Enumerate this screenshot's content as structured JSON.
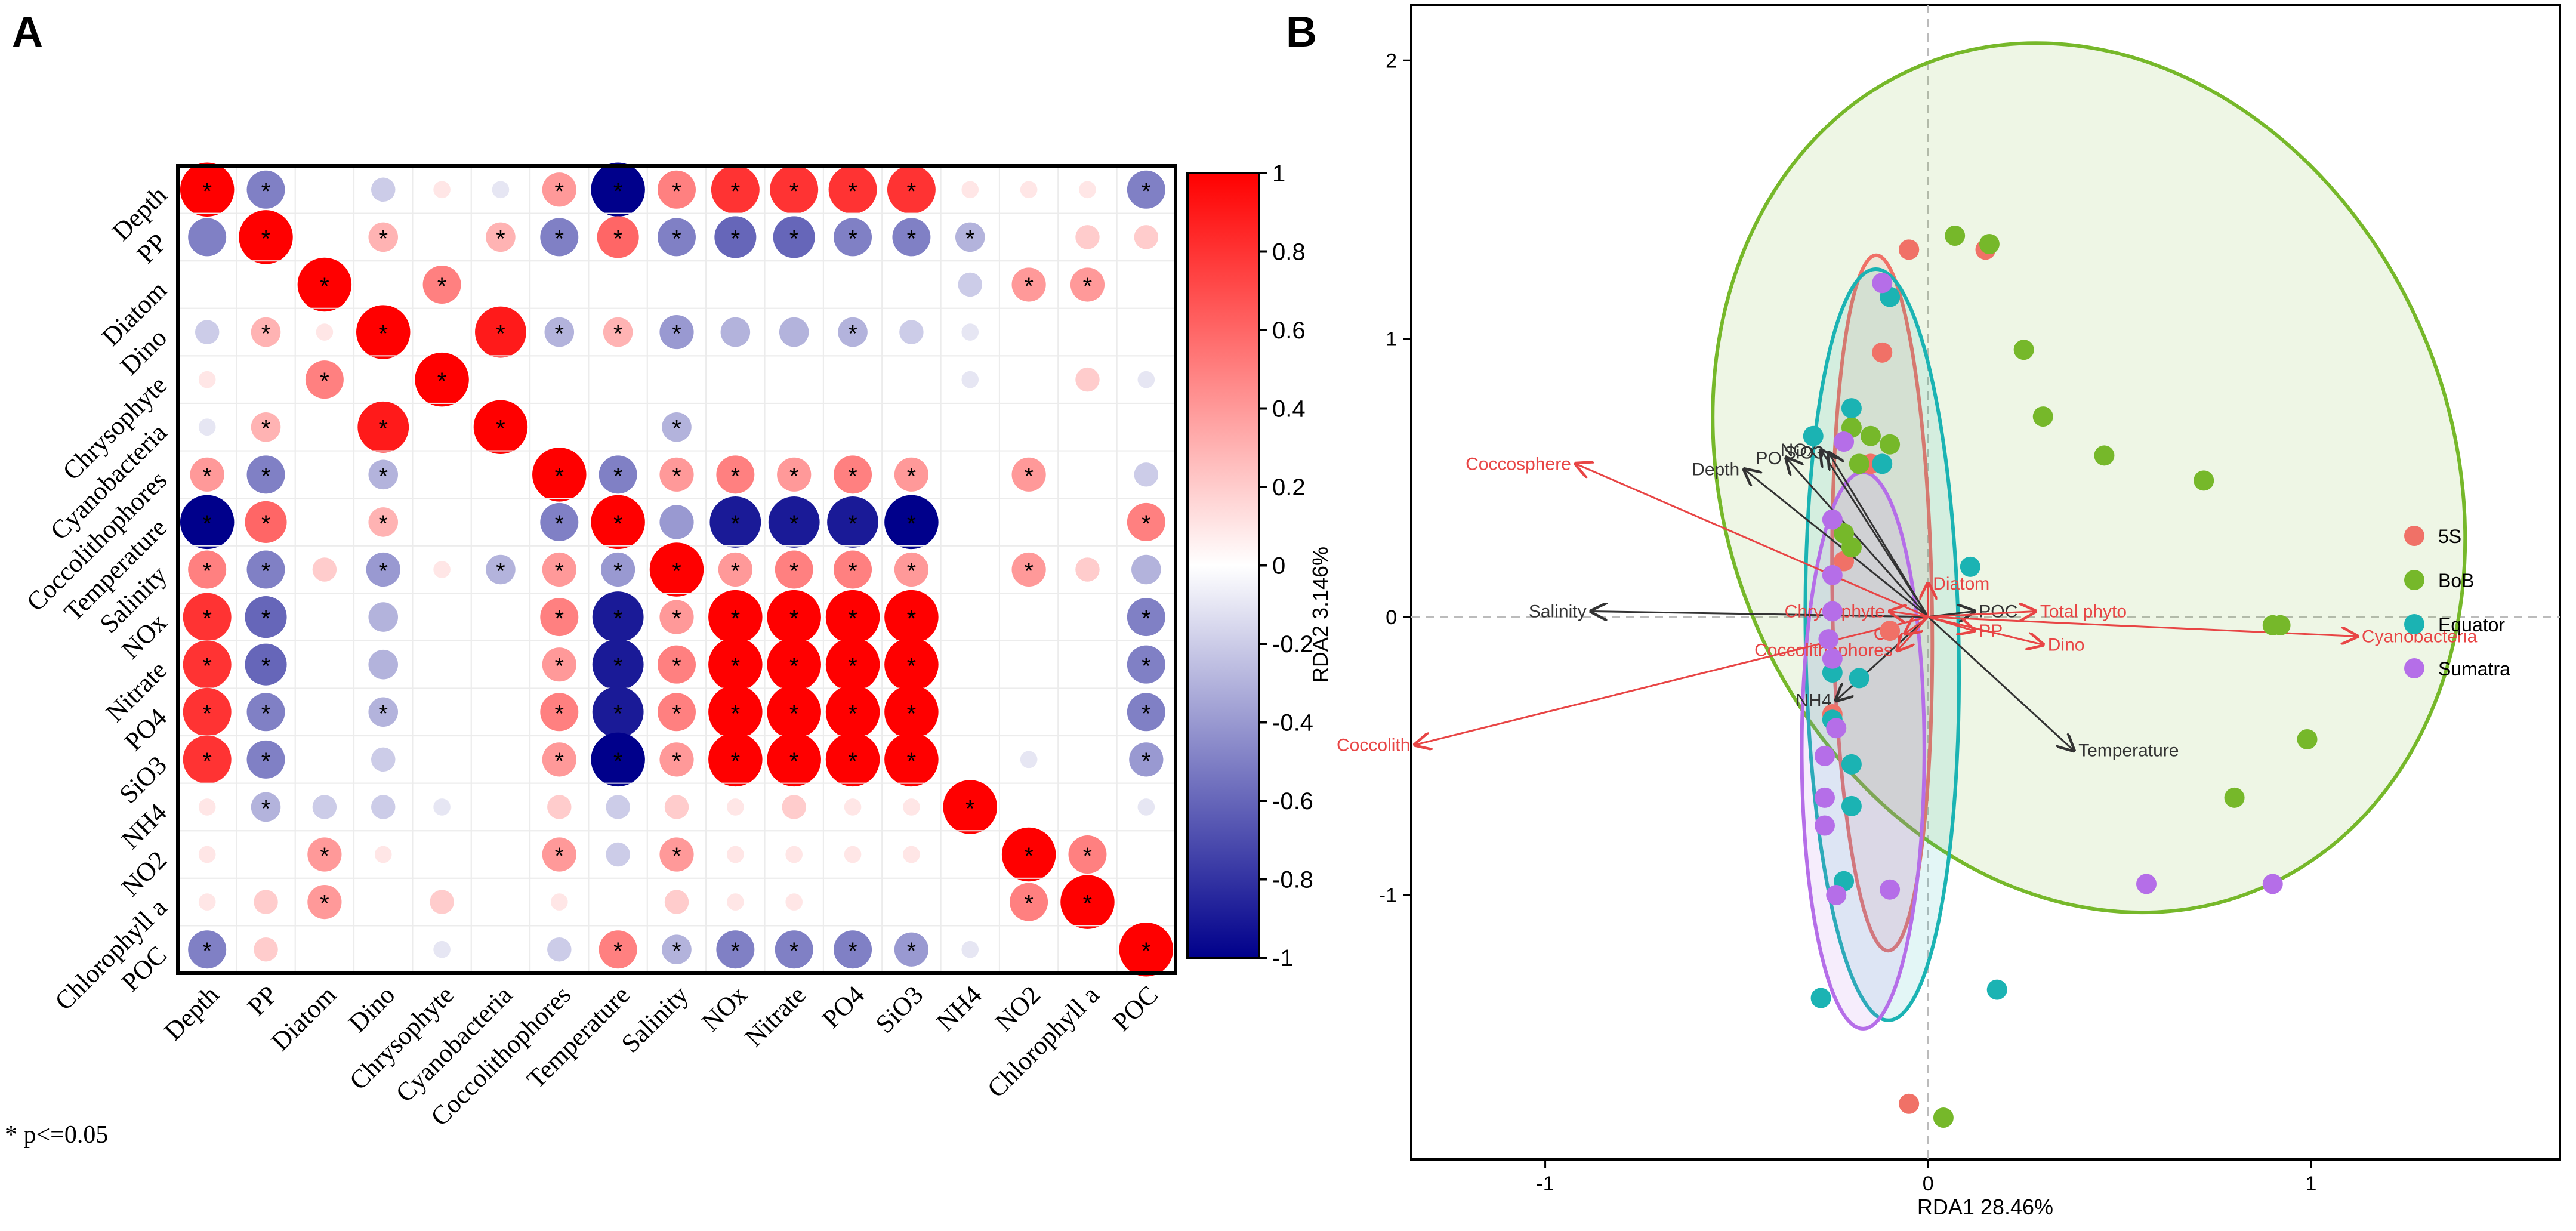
{
  "panel_labels": {
    "a": "A",
    "b": "B"
  },
  "chart_data": [
    {
      "type": "heatmap",
      "title": "",
      "variables": [
        "Depth",
        "PP",
        "Diatom",
        "Dino",
        "Chrysophyte",
        "Cyanobacteria",
        "Coccolithophores",
        "Temperature",
        "Salinity",
        "NOx",
        "Nitrate",
        "PO4",
        "SiO3",
        "NH4",
        "NO2",
        "Chlorophyll a",
        "POC"
      ],
      "matrix": [
        [
          1,
          -0.5,
          0,
          -0.2,
          0.1,
          -0.1,
          0.4,
          -1,
          0.5,
          0.8,
          0.8,
          0.8,
          0.8,
          0.1,
          0.1,
          0.1,
          -0.5
        ],
        [
          -0.5,
          1,
          0,
          0.3,
          0,
          0.3,
          -0.5,
          0.6,
          -0.5,
          -0.6,
          -0.6,
          -0.5,
          -0.5,
          -0.3,
          0,
          0.2,
          0.2
        ],
        [
          0,
          0,
          1,
          0,
          0.5,
          0,
          0,
          0,
          0,
          0,
          0,
          0,
          0,
          -0.2,
          0.4,
          0.4,
          0
        ],
        [
          -0.2,
          0.3,
          0.1,
          1,
          0,
          0.9,
          -0.3,
          0.3,
          -0.4,
          -0.3,
          -0.3,
          -0.3,
          -0.2,
          -0.1,
          0,
          0,
          0
        ],
        [
          0.1,
          0,
          0.5,
          0,
          1,
          0,
          0,
          0,
          0,
          0,
          0,
          0,
          0,
          -0.1,
          0,
          0.2,
          -0.1
        ],
        [
          -0.1,
          0.3,
          0,
          0.9,
          0,
          1,
          0,
          0,
          -0.3,
          0,
          0,
          0,
          0,
          0,
          0,
          0,
          0
        ],
        [
          0.4,
          -0.5,
          0,
          -0.3,
          0,
          0,
          1,
          -0.5,
          0.4,
          0.5,
          0.4,
          0.5,
          0.4,
          0,
          0.4,
          0,
          -0.2
        ],
        [
          -1,
          0.6,
          0,
          0.3,
          0,
          0,
          -0.5,
          1,
          -0.4,
          -0.9,
          -0.9,
          -0.9,
          -1,
          0,
          0,
          0,
          0.5
        ],
        [
          0.5,
          -0.5,
          0.2,
          -0.4,
          0.1,
          -0.3,
          0.4,
          -0.4,
          1,
          0.4,
          0.5,
          0.5,
          0.4,
          0,
          0.4,
          0.2,
          -0.3
        ],
        [
          0.8,
          -0.6,
          0,
          -0.3,
          0,
          0,
          0.5,
          -0.9,
          0.4,
          1,
          1,
          1,
          1,
          0,
          0,
          0,
          -0.5
        ],
        [
          0.8,
          -0.6,
          0,
          -0.3,
          0,
          0,
          0.4,
          -0.9,
          0.5,
          1,
          1,
          1,
          1,
          0,
          0,
          0,
          -0.5
        ],
        [
          0.8,
          -0.5,
          0,
          -0.3,
          0,
          0,
          0.5,
          -0.9,
          0.5,
          1,
          1,
          1,
          1,
          0,
          0,
          0,
          -0.5
        ],
        [
          0.8,
          -0.5,
          0,
          -0.2,
          0,
          0,
          0.4,
          -1,
          0.4,
          1,
          1,
          1,
          1,
          0,
          -0.1,
          0,
          -0.4
        ],
        [
          0.1,
          -0.3,
          -0.2,
          -0.2,
          -0.1,
          0,
          0.2,
          -0.2,
          0.2,
          0.1,
          0.2,
          0.1,
          0.1,
          1,
          0,
          0,
          -0.1
        ],
        [
          0.1,
          0,
          0.4,
          0.1,
          0,
          0,
          0.4,
          -0.2,
          0.4,
          0.1,
          0.1,
          0.1,
          0.1,
          0,
          1,
          0.5,
          0
        ],
        [
          0.1,
          0.2,
          0.4,
          0,
          0.2,
          0,
          0.1,
          0,
          0.2,
          0.1,
          0.1,
          0,
          0,
          0,
          0.5,
          1,
          0
        ],
        [
          -0.5,
          0.2,
          0,
          0,
          -0.1,
          0,
          -0.2,
          0.5,
          -0.3,
          -0.5,
          -0.5,
          -0.5,
          -0.4,
          -0.1,
          0,
          0,
          1
        ]
      ],
      "significant": [
        [
          0,
          0
        ],
        [
          0,
          1
        ],
        [
          0,
          6
        ],
        [
          0,
          7
        ],
        [
          0,
          8
        ],
        [
          0,
          9
        ],
        [
          0,
          10
        ],
        [
          0,
          11
        ],
        [
          0,
          12
        ],
        [
          0,
          16
        ],
        [
          1,
          1
        ],
        [
          1,
          3
        ],
        [
          1,
          5
        ],
        [
          1,
          6
        ],
        [
          1,
          7
        ],
        [
          1,
          8
        ],
        [
          1,
          9
        ],
        [
          1,
          10
        ],
        [
          1,
          11
        ],
        [
          1,
          12
        ],
        [
          1,
          13
        ],
        [
          2,
          2
        ],
        [
          2,
          4
        ],
        [
          2,
          14
        ],
        [
          2,
          15
        ],
        [
          3,
          1
        ],
        [
          3,
          3
        ],
        [
          3,
          5
        ],
        [
          3,
          6
        ],
        [
          3,
          7
        ],
        [
          3,
          8
        ],
        [
          3,
          11
        ],
        [
          4,
          2
        ],
        [
          4,
          4
        ],
        [
          5,
          1
        ],
        [
          5,
          3
        ],
        [
          5,
          5
        ],
        [
          5,
          8
        ],
        [
          6,
          0
        ],
        [
          6,
          1
        ],
        [
          6,
          3
        ],
        [
          6,
          6
        ],
        [
          6,
          7
        ],
        [
          6,
          8
        ],
        [
          6,
          9
        ],
        [
          6,
          10
        ],
        [
          6,
          11
        ],
        [
          6,
          12
        ],
        [
          6,
          14
        ],
        [
          7,
          0
        ],
        [
          7,
          1
        ],
        [
          7,
          3
        ],
        [
          7,
          6
        ],
        [
          7,
          7
        ],
        [
          7,
          9
        ],
        [
          7,
          10
        ],
        [
          7,
          11
        ],
        [
          7,
          12
        ],
        [
          7,
          16
        ],
        [
          8,
          0
        ],
        [
          8,
          1
        ],
        [
          8,
          3
        ],
        [
          8,
          5
        ],
        [
          8,
          6
        ],
        [
          8,
          7
        ],
        [
          8,
          8
        ],
        [
          8,
          9
        ],
        [
          8,
          10
        ],
        [
          8,
          11
        ],
        [
          8,
          12
        ],
        [
          8,
          14
        ],
        [
          9,
          0
        ],
        [
          9,
          1
        ],
        [
          9,
          6
        ],
        [
          9,
          7
        ],
        [
          9,
          8
        ],
        [
          9,
          9
        ],
        [
          9,
          10
        ],
        [
          9,
          11
        ],
        [
          9,
          12
        ],
        [
          9,
          16
        ],
        [
          10,
          0
        ],
        [
          10,
          1
        ],
        [
          10,
          6
        ],
        [
          10,
          7
        ],
        [
          10,
          8
        ],
        [
          10,
          9
        ],
        [
          10,
          10
        ],
        [
          10,
          11
        ],
        [
          10,
          12
        ],
        [
          10,
          16
        ],
        [
          11,
          0
        ],
        [
          11,
          1
        ],
        [
          11,
          3
        ],
        [
          11,
          6
        ],
        [
          11,
          7
        ],
        [
          11,
          8
        ],
        [
          11,
          9
        ],
        [
          11,
          10
        ],
        [
          11,
          11
        ],
        [
          11,
          12
        ],
        [
          11,
          16
        ],
        [
          12,
          0
        ],
        [
          12,
          1
        ],
        [
          12,
          6
        ],
        [
          12,
          7
        ],
        [
          12,
          8
        ],
        [
          12,
          9
        ],
        [
          12,
          10
        ],
        [
          12,
          11
        ],
        [
          12,
          12
        ],
        [
          12,
          16
        ],
        [
          13,
          1
        ],
        [
          13,
          13
        ],
        [
          14,
          2
        ],
        [
          14,
          6
        ],
        [
          14,
          8
        ],
        [
          14,
          14
        ],
        [
          14,
          15
        ],
        [
          15,
          2
        ],
        [
          15,
          14
        ],
        [
          15,
          15
        ],
        [
          16,
          0
        ],
        [
          16,
          7
        ],
        [
          16,
          8
        ],
        [
          16,
          9
        ],
        [
          16,
          10
        ],
        [
          16,
          11
        ],
        [
          16,
          12
        ],
        [
          16,
          16
        ]
      ],
      "colorbar": {
        "ticks": [
          1,
          0.8,
          0.6,
          0.4,
          0.2,
          0,
          -0.2,
          -0.4,
          -0.6,
          -0.8,
          -1
        ],
        "tick_labels": [
          "1",
          "0.8",
          "0.6",
          "0.4",
          "0.2",
          "0",
          "-0.2",
          "-0.4",
          "-0.6",
          "-0.8",
          "-1"
        ],
        "colors": {
          "high": "#ff0000",
          "mid": "#ffffff",
          "low": "#00008b"
        }
      },
      "footnote": "* p<=0.05",
      "star_symbol": "*"
    },
    {
      "type": "scatter",
      "title": "",
      "xlabel": "RDA1 28.46%",
      "ylabel": "RDA2 3.146%",
      "xlim": [
        -1.35,
        1.65
      ],
      "ylim": [
        -1.95,
        2.2
      ],
      "xticks": [
        -1,
        0,
        1
      ],
      "yticks": [
        -1,
        0,
        1,
        2
      ],
      "xtick_labels": [
        "-1",
        "0",
        "1"
      ],
      "ytick_labels": [
        "-1",
        "0",
        "1",
        "2"
      ],
      "legend_position": "right",
      "series": [
        {
          "name": "5S",
          "color": "#f07167",
          "points": [
            [
              -0.05,
              1.32
            ],
            [
              0.15,
              1.32
            ],
            [
              -0.05,
              1.32
            ],
            [
              -0.12,
              0.95
            ],
            [
              -0.15,
              0.55
            ],
            [
              -0.22,
              0.2
            ],
            [
              -0.1,
              -0.05
            ],
            [
              -0.25,
              -0.35
            ],
            [
              -0.05,
              -1.75
            ]
          ]
        },
        {
          "name": "BoB",
          "color": "#76b82a",
          "points": [
            [
              0.07,
              1.37
            ],
            [
              0.16,
              1.34
            ],
            [
              0.25,
              0.96
            ],
            [
              0.3,
              0.72
            ],
            [
              0.46,
              0.58
            ],
            [
              0.72,
              0.49
            ],
            [
              0.92,
              -0.03
            ],
            [
              0.9,
              -0.03
            ],
            [
              0.99,
              -0.44
            ],
            [
              0.8,
              -0.65
            ],
            [
              -0.2,
              0.68
            ],
            [
              -0.15,
              0.65
            ],
            [
              -0.1,
              0.62
            ],
            [
              -0.18,
              0.55
            ],
            [
              -0.22,
              0.3
            ],
            [
              -0.2,
              0.25
            ],
            [
              0.04,
              -1.8
            ]
          ]
        },
        {
          "name": "Equator",
          "color": "#1bb3b3",
          "points": [
            [
              -0.1,
              1.15
            ],
            [
              -0.2,
              0.75
            ],
            [
              -0.3,
              0.65
            ],
            [
              -0.12,
              0.55
            ],
            [
              0.11,
              0.18
            ],
            [
              -0.25,
              -0.2
            ],
            [
              -0.18,
              -0.22
            ],
            [
              -0.25,
              -0.37
            ],
            [
              -0.2,
              -0.53
            ],
            [
              -0.2,
              -0.68
            ],
            [
              -0.28,
              -1.37
            ],
            [
              0.18,
              -1.34
            ],
            [
              -0.22,
              -0.95
            ]
          ]
        },
        {
          "name": "Sumatra",
          "color": "#b56ee8",
          "points": [
            [
              -0.12,
              1.2
            ],
            [
              -0.22,
              0.63
            ],
            [
              -0.25,
              0.35
            ],
            [
              -0.25,
              0.15
            ],
            [
              -0.25,
              0.02
            ],
            [
              -0.26,
              -0.08
            ],
            [
              -0.25,
              -0.15
            ],
            [
              -0.24,
              -0.4
            ],
            [
              -0.27,
              -0.5
            ],
            [
              -0.27,
              -0.65
            ],
            [
              -0.27,
              -0.75
            ],
            [
              -0.24,
              -1.0
            ],
            [
              0.57,
              -0.96
            ],
            [
              0.9,
              -0.96
            ],
            [
              -0.1,
              -0.98
            ]
          ]
        }
      ],
      "ellipses": [
        {
          "group": "BoB",
          "cx": 0.42,
          "cy": 0.5,
          "rx": 0.95,
          "ry": 1.6,
          "angle_deg": -22
        },
        {
          "group": "5S",
          "cx": -0.12,
          "cy": 0.05,
          "rx": 0.13,
          "ry": 1.25,
          "angle_deg": -1
        },
        {
          "group": "Equator",
          "cx": -0.12,
          "cy": -0.1,
          "rx": 0.2,
          "ry": 1.35,
          "angle_deg": -1
        },
        {
          "group": "Sumatra",
          "cx": -0.17,
          "cy": -0.48,
          "rx": 0.16,
          "ry": 1.0,
          "angle_deg": 0
        }
      ],
      "env_arrows": [
        {
          "label": "Salinity",
          "x": -0.88,
          "y": 0.02
        },
        {
          "label": "Depth",
          "x": -0.48,
          "y": 0.53
        },
        {
          "label": "PO",
          "x": -0.37,
          "y": 0.57
        },
        {
          "label": "NOx",
          "x": -0.28,
          "y": 0.6
        },
        {
          "label": "SiO3",
          "x": -0.26,
          "y": 0.59
        },
        {
          "label": "NH4",
          "x": -0.24,
          "y": -0.3
        },
        {
          "label": "Temperature",
          "x": 0.38,
          "y": -0.48
        },
        {
          "label": "POC",
          "x": 0.12,
          "y": 0.02
        }
      ],
      "species_arrows": [
        {
          "label": "Coccosphere",
          "x": -0.92,
          "y": 0.55
        },
        {
          "label": "Coccolith",
          "x": -1.34,
          "y": -0.46
        },
        {
          "label": "Cyanobacteria",
          "x": 1.12,
          "y": -0.07
        },
        {
          "label": "Total phyto",
          "x": 0.28,
          "y": 0.02
        },
        {
          "label": "Diatom",
          "x": 0.0,
          "y": 0.12
        },
        {
          "label": "Chrysophyte",
          "x": -0.1,
          "y": 0.02
        },
        {
          "label": "Coccolithophores",
          "x": -0.08,
          "y": -0.12
        },
        {
          "label": "Dino",
          "x": 0.3,
          "y": -0.1
        },
        {
          "label": "PP",
          "x": 0.12,
          "y": -0.05
        },
        {
          "label": "Chl",
          "x": -0.06,
          "y": -0.06
        }
      ]
    }
  ]
}
